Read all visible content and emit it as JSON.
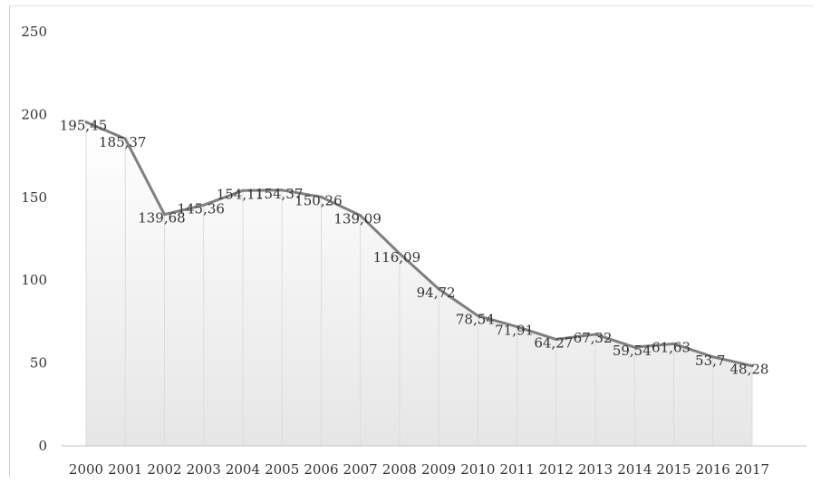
{
  "chart_data": {
    "type": "area",
    "categories": [
      "2000",
      "2001",
      "2002",
      "2003",
      "2004",
      "2005",
      "2006",
      "2007",
      "2008",
      "2009",
      "2010",
      "2011",
      "2012",
      "2013",
      "2014",
      "2015",
      "2016",
      "2017"
    ],
    "values": [
      195.45,
      185.37,
      139.68,
      145.36,
      154.11,
      154.37,
      150.26,
      139.09,
      116.09,
      94.72,
      78.54,
      71.91,
      64.27,
      67.32,
      59.54,
      61.63,
      53.7,
      48.28
    ],
    "data_labels": [
      "195,45",
      "185,37",
      "139,68",
      "145,36",
      "154,11",
      "154,37",
      "150,26",
      "139,09",
      "116,09",
      "94,72",
      "78,54",
      "71,91",
      "64,27",
      "67,32",
      "59,54",
      "61,63",
      "53,7",
      "48,28"
    ],
    "y_ticks": [
      "0",
      "50",
      "100",
      "150",
      "200",
      "250"
    ],
    "ylim": [
      0,
      250
    ],
    "title": "",
    "xlabel": "",
    "ylabel": "",
    "grid": false,
    "legend": "none",
    "colors": {
      "line": "#7f7f7f",
      "fill_top": "#ffffff",
      "fill_bottom": "#e6e6e6",
      "drop_lines": "#dcdcdc",
      "axis": "#bfbfbf"
    }
  }
}
